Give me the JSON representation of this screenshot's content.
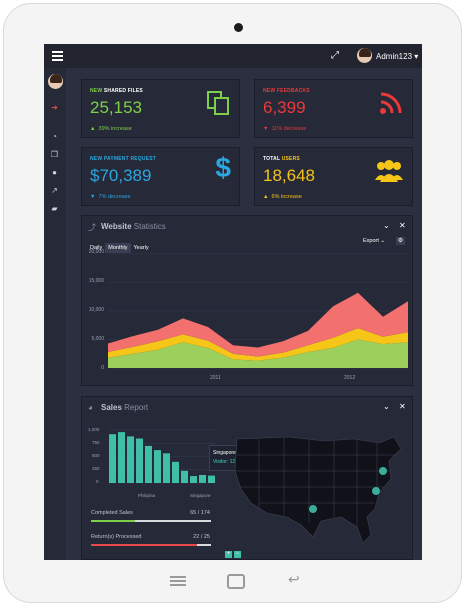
{
  "topbar": {
    "user_name": "Admin123",
    "dropdown_glyph": "▾"
  },
  "cards": [
    {
      "label_prefix": "NEW ",
      "label_strong": "SHARED FILES",
      "value": "25,153",
      "trend_glyph": "▲",
      "trend": "39% increase",
      "color": "#7ed04a",
      "icon": "files-icon"
    },
    {
      "label_prefix": "NEW ",
      "label_strong": "FEEDBACKS",
      "value": "6,399",
      "trend_glyph": "▼",
      "trend": "11% decrease",
      "color": "#e83a3a",
      "icon": "rss-icon"
    },
    {
      "label_prefix": "NEW ",
      "label_strong": "PAYMENT REQUEST",
      "value": "$70,389",
      "trend_glyph": "▼",
      "trend": "7% decrease",
      "color": "#2aa7e0",
      "icon": "dollar-icon"
    },
    {
      "label_prefix": "TOTAL ",
      "label_strong": "USERS",
      "value": "18,648",
      "trend_glyph": "▲",
      "trend": "6% increase",
      "color": "#f5c518",
      "icon": "users-icon"
    }
  ],
  "website_panel": {
    "title_strong": "Website",
    "title_rest": " Statistics",
    "tabs": [
      "Daily",
      "Monthly",
      "Yearly"
    ],
    "active_tab": "Monthly",
    "export_label": "Export ⌄"
  },
  "sales_panel": {
    "title_strong": "Sales",
    "title_rest": " Report",
    "tooltip_title": "Singapore",
    "tooltip_value": "Visitor: 124",
    "stats": [
      {
        "label": "Completed Sales",
        "value": "65 / 174",
        "fraction": 0.37,
        "color": "#7ed04a"
      },
      {
        "label": "Return(s) Processed",
        "value": "22 / 25",
        "fraction": 0.88,
        "color": "#e84a4a"
      }
    ]
  },
  "chart_data": [
    {
      "type": "area",
      "title": "Website Statistics",
      "stacked": true,
      "x": [
        2010.2,
        2010.4,
        2010.6,
        2010.8,
        2011.0,
        2011.2,
        2011.4,
        2011.6,
        2011.8,
        2012.0,
        2012.2,
        2012.4,
        2012.6
      ],
      "x_ticks": [
        "2011",
        "2012"
      ],
      "ylim": [
        0,
        20000
      ],
      "y_ticks": [
        "20,000",
        "15,000",
        "10,000",
        "5,000",
        "0"
      ],
      "grid": true,
      "series": [
        {
          "color": "#9ccf5c",
          "values": [
            1800,
            2500,
            3200,
            4500,
            3500,
            1500,
            1300,
            1800,
            2800,
            3500,
            5000,
            4200,
            4500
          ]
        },
        {
          "color": "#f5c518",
          "values": [
            1000,
            1200,
            1500,
            1400,
            1300,
            1000,
            700,
            900,
            1200,
            1800,
            2000,
            1300,
            1800
          ]
        },
        {
          "color": "#f2706e",
          "values": [
            1500,
            1900,
            2000,
            2800,
            2400,
            1500,
            1600,
            2000,
            2500,
            5500,
            6200,
            3500,
            5400
          ]
        }
      ]
    },
    {
      "type": "bar",
      "ylim": [
        0,
        1000
      ],
      "y_ticks": [
        "1,000",
        "750",
        "500",
        "250",
        "0"
      ],
      "x_ticks": [
        "Philipina",
        "Singapore"
      ],
      "color": "#3fbfa8",
      "values": [
        920,
        960,
        880,
        840,
        700,
        620,
        560,
        400,
        230,
        130,
        150,
        140
      ]
    }
  ]
}
